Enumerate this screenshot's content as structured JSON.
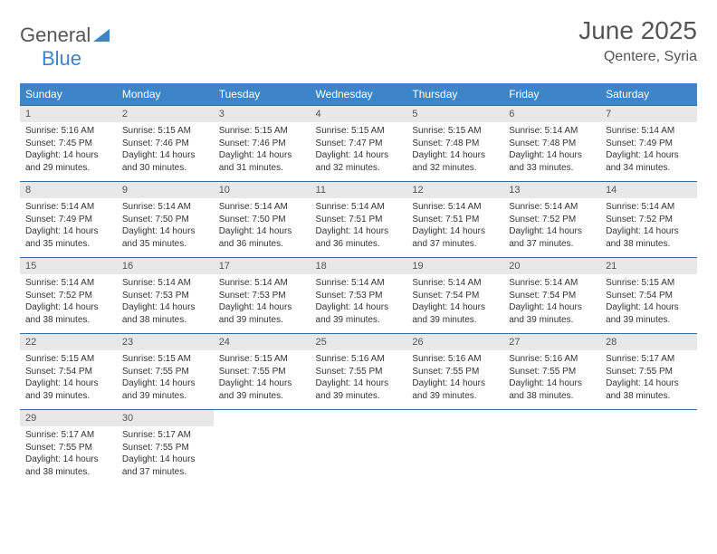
{
  "logo": {
    "text_gray": "General",
    "text_blue": "Blue"
  },
  "title": "June 2025",
  "location": "Qentere, Syria",
  "colors": {
    "header_bg": "#3d85c6",
    "header_text": "#ffffff",
    "daynum_bg": "#e8e8e8",
    "border": "#3d6a95",
    "text": "#333333",
    "title_text": "#555555"
  },
  "day_headers": [
    "Sunday",
    "Monday",
    "Tuesday",
    "Wednesday",
    "Thursday",
    "Friday",
    "Saturday"
  ],
  "weeks": [
    [
      {
        "n": "1",
        "sunrise": "Sunrise: 5:16 AM",
        "sunset": "Sunset: 7:45 PM",
        "day": "Daylight: 14 hours and 29 minutes."
      },
      {
        "n": "2",
        "sunrise": "Sunrise: 5:15 AM",
        "sunset": "Sunset: 7:46 PM",
        "day": "Daylight: 14 hours and 30 minutes."
      },
      {
        "n": "3",
        "sunrise": "Sunrise: 5:15 AM",
        "sunset": "Sunset: 7:46 PM",
        "day": "Daylight: 14 hours and 31 minutes."
      },
      {
        "n": "4",
        "sunrise": "Sunrise: 5:15 AM",
        "sunset": "Sunset: 7:47 PM",
        "day": "Daylight: 14 hours and 32 minutes."
      },
      {
        "n": "5",
        "sunrise": "Sunrise: 5:15 AM",
        "sunset": "Sunset: 7:48 PM",
        "day": "Daylight: 14 hours and 32 minutes."
      },
      {
        "n": "6",
        "sunrise": "Sunrise: 5:14 AM",
        "sunset": "Sunset: 7:48 PM",
        "day": "Daylight: 14 hours and 33 minutes."
      },
      {
        "n": "7",
        "sunrise": "Sunrise: 5:14 AM",
        "sunset": "Sunset: 7:49 PM",
        "day": "Daylight: 14 hours and 34 minutes."
      }
    ],
    [
      {
        "n": "8",
        "sunrise": "Sunrise: 5:14 AM",
        "sunset": "Sunset: 7:49 PM",
        "day": "Daylight: 14 hours and 35 minutes."
      },
      {
        "n": "9",
        "sunrise": "Sunrise: 5:14 AM",
        "sunset": "Sunset: 7:50 PM",
        "day": "Daylight: 14 hours and 35 minutes."
      },
      {
        "n": "10",
        "sunrise": "Sunrise: 5:14 AM",
        "sunset": "Sunset: 7:50 PM",
        "day": "Daylight: 14 hours and 36 minutes."
      },
      {
        "n": "11",
        "sunrise": "Sunrise: 5:14 AM",
        "sunset": "Sunset: 7:51 PM",
        "day": "Daylight: 14 hours and 36 minutes."
      },
      {
        "n": "12",
        "sunrise": "Sunrise: 5:14 AM",
        "sunset": "Sunset: 7:51 PM",
        "day": "Daylight: 14 hours and 37 minutes."
      },
      {
        "n": "13",
        "sunrise": "Sunrise: 5:14 AM",
        "sunset": "Sunset: 7:52 PM",
        "day": "Daylight: 14 hours and 37 minutes."
      },
      {
        "n": "14",
        "sunrise": "Sunrise: 5:14 AM",
        "sunset": "Sunset: 7:52 PM",
        "day": "Daylight: 14 hours and 38 minutes."
      }
    ],
    [
      {
        "n": "15",
        "sunrise": "Sunrise: 5:14 AM",
        "sunset": "Sunset: 7:52 PM",
        "day": "Daylight: 14 hours and 38 minutes."
      },
      {
        "n": "16",
        "sunrise": "Sunrise: 5:14 AM",
        "sunset": "Sunset: 7:53 PM",
        "day": "Daylight: 14 hours and 38 minutes."
      },
      {
        "n": "17",
        "sunrise": "Sunrise: 5:14 AM",
        "sunset": "Sunset: 7:53 PM",
        "day": "Daylight: 14 hours and 39 minutes."
      },
      {
        "n": "18",
        "sunrise": "Sunrise: 5:14 AM",
        "sunset": "Sunset: 7:53 PM",
        "day": "Daylight: 14 hours and 39 minutes."
      },
      {
        "n": "19",
        "sunrise": "Sunrise: 5:14 AM",
        "sunset": "Sunset: 7:54 PM",
        "day": "Daylight: 14 hours and 39 minutes."
      },
      {
        "n": "20",
        "sunrise": "Sunrise: 5:14 AM",
        "sunset": "Sunset: 7:54 PM",
        "day": "Daylight: 14 hours and 39 minutes."
      },
      {
        "n": "21",
        "sunrise": "Sunrise: 5:15 AM",
        "sunset": "Sunset: 7:54 PM",
        "day": "Daylight: 14 hours and 39 minutes."
      }
    ],
    [
      {
        "n": "22",
        "sunrise": "Sunrise: 5:15 AM",
        "sunset": "Sunset: 7:54 PM",
        "day": "Daylight: 14 hours and 39 minutes."
      },
      {
        "n": "23",
        "sunrise": "Sunrise: 5:15 AM",
        "sunset": "Sunset: 7:55 PM",
        "day": "Daylight: 14 hours and 39 minutes."
      },
      {
        "n": "24",
        "sunrise": "Sunrise: 5:15 AM",
        "sunset": "Sunset: 7:55 PM",
        "day": "Daylight: 14 hours and 39 minutes."
      },
      {
        "n": "25",
        "sunrise": "Sunrise: 5:16 AM",
        "sunset": "Sunset: 7:55 PM",
        "day": "Daylight: 14 hours and 39 minutes."
      },
      {
        "n": "26",
        "sunrise": "Sunrise: 5:16 AM",
        "sunset": "Sunset: 7:55 PM",
        "day": "Daylight: 14 hours and 39 minutes."
      },
      {
        "n": "27",
        "sunrise": "Sunrise: 5:16 AM",
        "sunset": "Sunset: 7:55 PM",
        "day": "Daylight: 14 hours and 38 minutes."
      },
      {
        "n": "28",
        "sunrise": "Sunrise: 5:17 AM",
        "sunset": "Sunset: 7:55 PM",
        "day": "Daylight: 14 hours and 38 minutes."
      }
    ],
    [
      {
        "n": "29",
        "sunrise": "Sunrise: 5:17 AM",
        "sunset": "Sunset: 7:55 PM",
        "day": "Daylight: 14 hours and 38 minutes."
      },
      {
        "n": "30",
        "sunrise": "Sunrise: 5:17 AM",
        "sunset": "Sunset: 7:55 PM",
        "day": "Daylight: 14 hours and 37 minutes."
      },
      null,
      null,
      null,
      null,
      null
    ]
  ]
}
